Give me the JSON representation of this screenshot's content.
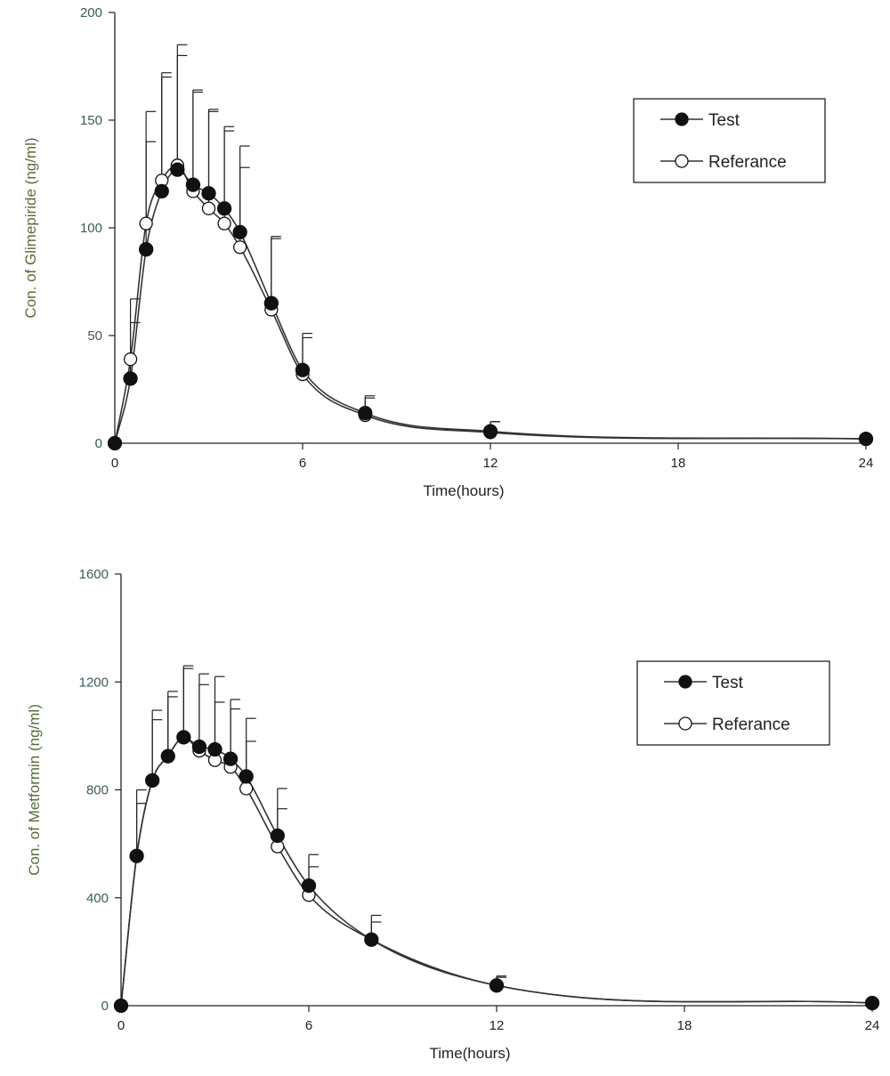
{
  "chart_data": [
    {
      "type": "line",
      "title": "",
      "xlabel": "Time(hours)",
      "ylabel": "Con. of Glimepiride (ng/ml)",
      "xlim": [
        0,
        24
      ],
      "ylim": [
        0,
        200
      ],
      "xticks": [
        "0",
        "6",
        "12",
        "18",
        "24"
      ],
      "yticks": [
        "0",
        "50",
        "100",
        "150",
        "200"
      ],
      "grid": false,
      "legend_position": "top-right",
      "x": [
        0,
        0.5,
        1,
        1.5,
        2,
        2.5,
        3,
        3.5,
        4,
        5,
        6,
        8,
        12,
        24
      ],
      "series": [
        {
          "name": "Test",
          "marker": "filled-circle",
          "values": [
            0,
            30,
            90,
            117,
            127,
            120,
            116,
            109,
            98,
            65,
            34,
            14,
            5.5,
            2
          ],
          "error": [
            0,
            26,
            50,
            53,
            53,
            43,
            38,
            38,
            40,
            30,
            17,
            8,
            4.5,
            0
          ]
        },
        {
          "name": "Referance",
          "marker": "open-circle",
          "values": [
            0,
            39,
            102,
            122,
            129,
            117,
            109,
            102,
            91,
            62,
            32,
            13,
            5,
            2
          ],
          "error": [
            0,
            28,
            52,
            50,
            56,
            47,
            46,
            43,
            37,
            34,
            17,
            8,
            5,
            0
          ]
        }
      ]
    },
    {
      "type": "line",
      "title": "",
      "xlabel": "Time(hours)",
      "ylabel": "Con. of Metformin (ng/ml)",
      "xlim": [
        0,
        24
      ],
      "ylim": [
        0,
        1600
      ],
      "xticks": [
        "0",
        "6",
        "12",
        "18",
        "24"
      ],
      "yticks": [
        "0",
        "400",
        "800",
        "1200",
        "1600"
      ],
      "grid": false,
      "legend_position": "right",
      "x": [
        0,
        0.5,
        1,
        1.5,
        2,
        2.5,
        3,
        3.5,
        4,
        5,
        6,
        8,
        12,
        24
      ],
      "series": [
        {
          "name": "Test",
          "marker": "filled-circle",
          "values": [
            0,
            555,
            835,
            925,
            995,
            960,
            950,
            915,
            850,
            630,
            445,
            245,
            75,
            10
          ],
          "error": [
            0,
            245,
            260,
            240,
            265,
            270,
            270,
            220,
            215,
            175,
            115,
            90,
            35,
            0
          ]
        },
        {
          "name": "Referance",
          "marker": "open-circle",
          "values": [
            0,
            555,
            835,
            925,
            995,
            945,
            910,
            885,
            805,
            590,
            410,
            245,
            75,
            10
          ],
          "error": [
            0,
            195,
            225,
            220,
            255,
            245,
            215,
            215,
            175,
            140,
            105,
            65,
            30,
            0
          ]
        }
      ]
    }
  ]
}
